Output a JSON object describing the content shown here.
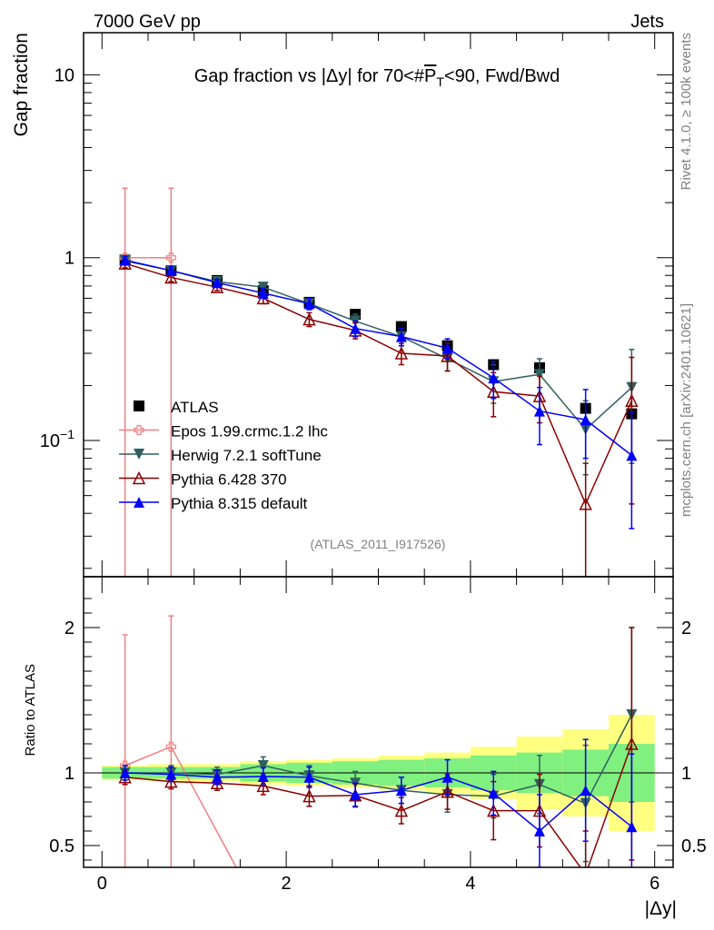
{
  "header": {
    "energy": "7000 GeV pp",
    "process": "Jets",
    "rivet_version": "Rivet 4.1.0, ≥ 100k events",
    "source": "mcplots.cern.ch [arXiv:2401.10621]",
    "analysis_id": "(ATLAS_2011_I917526)"
  },
  "chart_data": [
    {
      "type": "scatter",
      "panel": "main",
      "title_parts": [
        "Gap fraction vs |Δy| for 70<#",
        "P",
        "T",
        "<90, Fwd/Bwd"
      ],
      "xlabel": "|Δy|",
      "ylabel": "Gap fraction",
      "yscale": "log",
      "xlim": [
        -0.2,
        6.2
      ],
      "ylim": [
        0.018,
        17
      ],
      "x": [
        0.25,
        0.75,
        1.25,
        1.75,
        2.25,
        2.75,
        3.25,
        3.75,
        4.25,
        4.75,
        5.25,
        5.75
      ],
      "ytick_labels": [
        {
          "value": 10,
          "base": "10",
          "exp": ""
        },
        {
          "value": 1,
          "base": "1",
          "exp": ""
        },
        {
          "value": 0.1,
          "base": "10",
          "exp": "−1"
        }
      ],
      "legend": [
        "ATLAS",
        "Epos 1.99.crmc.1.2 lhc",
        "Herwig 7.2.1 softTune",
        "Pythia 6.428 370",
        "Pythia 8.315 default"
      ],
      "series": [
        {
          "name": "ATLAS",
          "color": "#000000",
          "marker": "square",
          "values": [
            0.97,
            0.85,
            0.75,
            0.66,
            0.57,
            0.49,
            0.42,
            0.33,
            0.26,
            0.25,
            0.15,
            0.14
          ]
        },
        {
          "name": "Epos 1.99.crmc.1.2 lhc",
          "color": "#f08080",
          "marker": "cross",
          "values": [
            1.0,
            1.0
          ],
          "err_lo": [
            0.99,
            0.99
          ],
          "err_hi": [
            1.4,
            1.4
          ]
        },
        {
          "name": "Herwig 7.2.1 softTune",
          "color": "#2f5f5f",
          "marker": "triangle-down",
          "values": [
            0.96,
            0.85,
            0.74,
            0.69,
            0.56,
            0.45,
            0.37,
            0.28,
            0.21,
            0.23,
            0.115,
            0.195
          ],
          "err_lo": [
            0.05,
            0.04,
            0.03,
            0.04,
            0.04,
            0.04,
            0.04,
            0.04,
            0.05,
            0.05,
            0.05,
            0.12
          ],
          "err_hi": [
            0.05,
            0.04,
            0.03,
            0.04,
            0.04,
            0.04,
            0.04,
            0.04,
            0.05,
            0.05,
            0.05,
            0.12
          ]
        },
        {
          "name": "Pythia 6.428 370",
          "color": "#8b0000",
          "marker": "triangle-up-open",
          "values": [
            0.93,
            0.78,
            0.69,
            0.6,
            0.46,
            0.4,
            0.3,
            0.29,
            0.185,
            0.175,
            0.045,
            0.165
          ],
          "err_lo": [
            0.05,
            0.04,
            0.03,
            0.04,
            0.04,
            0.04,
            0.04,
            0.05,
            0.05,
            0.05,
            0.03,
            0.12
          ],
          "err_hi": [
            0.05,
            0.04,
            0.03,
            0.04,
            0.04,
            0.04,
            0.04,
            0.05,
            0.05,
            0.05,
            0.03,
            0.12
          ]
        },
        {
          "name": "Pythia 8.315 default",
          "color": "#0000ff",
          "marker": "triangle-up",
          "values": [
            0.97,
            0.85,
            0.73,
            0.64,
            0.56,
            0.41,
            0.37,
            0.32,
            0.22,
            0.145,
            0.13,
            0.083
          ],
          "err_lo": [
            0.05,
            0.04,
            0.03,
            0.04,
            0.04,
            0.04,
            0.04,
            0.04,
            0.05,
            0.05,
            0.05,
            0.05
          ],
          "err_hi": [
            0.05,
            0.04,
            0.03,
            0.04,
            0.04,
            0.04,
            0.04,
            0.04,
            0.05,
            0.05,
            0.06,
            0.06
          ]
        }
      ]
    },
    {
      "type": "scatter",
      "panel": "ratio",
      "ylabel": "Ratio to ATLAS",
      "xlabel": "|Δy|",
      "xlim": [
        -0.2,
        6.2
      ],
      "ylim": [
        0.35,
        2.35
      ],
      "xticks": [
        0,
        2,
        4,
        6
      ],
      "yticks": [
        0.5,
        1,
        2
      ],
      "band_inner": [
        0.04,
        0.04,
        0.04,
        0.06,
        0.07,
        0.08,
        0.09,
        0.1,
        0.12,
        0.14,
        0.16,
        0.2
      ],
      "band_outer": [
        0.05,
        0.06,
        0.06,
        0.08,
        0.09,
        0.1,
        0.12,
        0.14,
        0.18,
        0.25,
        0.3,
        0.4
      ],
      "series": [
        {
          "name": "Epos 1.99.crmc.1.2 lhc",
          "color": "#f08080",
          "marker": "cross",
          "x": [
            0.25,
            0.75,
            1.5
          ],
          "values": [
            1.05,
            1.18,
            0.3
          ],
          "err": [
            0.9,
            0.9,
            0
          ]
        },
        {
          "name": "Herwig 7.2.1 softTune",
          "color": "#2f5f5f",
          "marker": "triangle-down",
          "values": [
            1.0,
            1.0,
            0.99,
            1.05,
            0.98,
            0.93,
            0.88,
            0.85,
            0.84,
            0.92,
            0.79,
            1.4
          ],
          "err": [
            0.05,
            0.05,
            0.05,
            0.06,
            0.07,
            0.08,
            0.09,
            0.12,
            0.15,
            0.2,
            0.4,
            0.6
          ]
        },
        {
          "name": "Pythia 6.428 370",
          "color": "#8b0000",
          "marker": "triangle-up-open",
          "values": [
            0.97,
            0.94,
            0.93,
            0.91,
            0.84,
            0.845,
            0.74,
            0.87,
            0.74,
            0.74,
            0.3,
            1.2
          ],
          "err": [
            0.05,
            0.05,
            0.05,
            0.06,
            0.07,
            0.08,
            0.09,
            0.12,
            0.2,
            0.25,
            0.3,
            0.8
          ]
        },
        {
          "name": "Pythia 8.315 default",
          "color": "#0000ff",
          "marker": "triangle-up",
          "values": [
            1.0,
            0.99,
            0.97,
            0.975,
            0.97,
            0.85,
            0.88,
            0.97,
            0.86,
            0.6,
            0.88,
            0.63
          ],
          "err": [
            0.05,
            0.05,
            0.05,
            0.06,
            0.07,
            0.08,
            0.09,
            0.12,
            0.15,
            0.25,
            0.35,
            0.5
          ]
        }
      ]
    }
  ]
}
